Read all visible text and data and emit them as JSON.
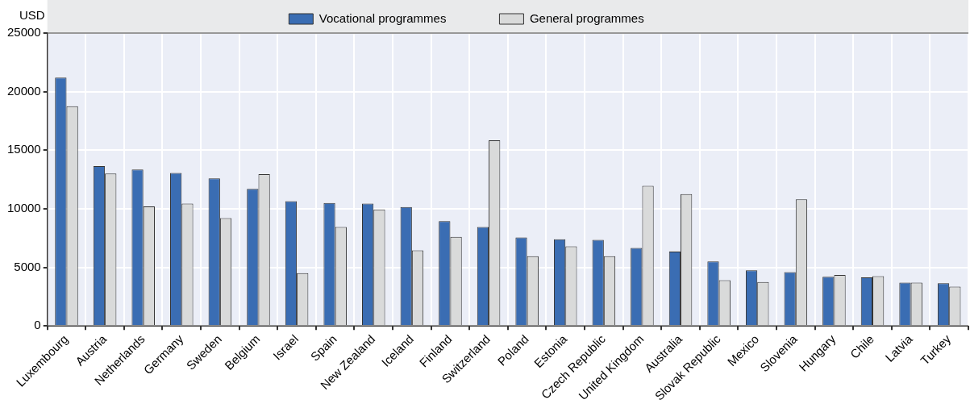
{
  "chart_data": {
    "type": "bar",
    "ylabel": "USD",
    "categories": [
      "Luxembourg",
      "Austria",
      "Netherlands",
      "Germany",
      "Sweden",
      "Belgium",
      "Israel",
      "Spain",
      "New Zealand",
      "Iceland",
      "Finland",
      "Switzerland",
      "Poland",
      "Estonia",
      "Czech Republic",
      "United Kingdom",
      "Australia",
      "Slovak Republic",
      "Mexico",
      "Slovenia",
      "Hungary",
      "Chile",
      "Latvia",
      "Turkey"
    ],
    "series": [
      {
        "name": "Vocational programmes",
        "color": "#3a6db3",
        "values": [
          21200,
          13650,
          13350,
          13050,
          12600,
          11700,
          10650,
          10500,
          10450,
          10150,
          8950,
          8450,
          7550,
          7400,
          7350,
          6650,
          6350,
          5500,
          4750,
          4600,
          4200,
          4150,
          3700,
          3650
        ]
      },
      {
        "name": "General programmes",
        "color": "#d9dada",
        "values": [
          18750,
          13000,
          10200,
          10450,
          9200,
          12950,
          4500,
          8450,
          9950,
          6450,
          7600,
          15850,
          5950,
          6800,
          5950,
          11950,
          11250,
          3900,
          3750,
          10800,
          4350,
          4250,
          3700,
          3350
        ]
      }
    ],
    "ylim": [
      0,
      25000
    ],
    "yticks": [
      0,
      5000,
      10000,
      15000,
      20000,
      25000
    ],
    "grid": true,
    "legend": "top"
  }
}
